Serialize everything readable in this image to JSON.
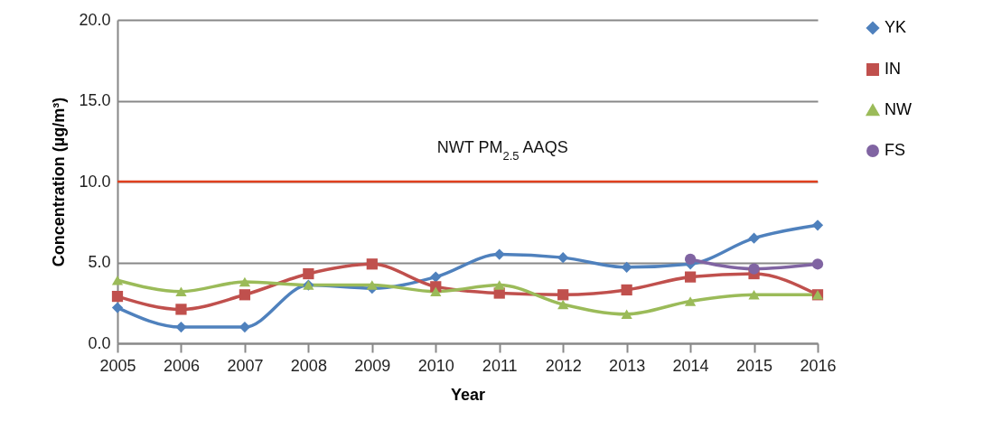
{
  "chart_data": {
    "type": "line",
    "xlabel": "Year",
    "ylabel": "Concentration (µg/m³)",
    "categories": [
      "2005",
      "2006",
      "2007",
      "2008",
      "2009",
      "2010",
      "2011",
      "2012",
      "2013",
      "2014",
      "2015",
      "2016"
    ],
    "series": [
      {
        "name": "YK",
        "color": "#4f81bd",
        "marker": "diamond",
        "values": [
          2.2,
          1.0,
          1.0,
          3.6,
          3.4,
          4.1,
          5.5,
          5.3,
          4.7,
          4.9,
          6.5,
          7.3
        ]
      },
      {
        "name": "IN",
        "color": "#c0504d",
        "marker": "square",
        "values": [
          2.9,
          2.1,
          3.0,
          4.3,
          4.9,
          3.5,
          3.1,
          3.0,
          3.3,
          4.1,
          4.3,
          3.0
        ]
      },
      {
        "name": "NW",
        "color": "#9bbb59",
        "marker": "triangle",
        "values": [
          3.9,
          3.2,
          3.8,
          3.6,
          3.6,
          3.2,
          3.6,
          2.4,
          1.8,
          2.6,
          3.0,
          3.0
        ]
      },
      {
        "name": "FS",
        "color": "#8064a2",
        "marker": "circle",
        "values": [
          null,
          null,
          null,
          null,
          null,
          null,
          null,
          null,
          null,
          5.2,
          4.6,
          4.9
        ]
      }
    ],
    "ylim": [
      0,
      20
    ],
    "yticks": [
      {
        "value": 0,
        "label": "0.0"
      },
      {
        "value": 5,
        "label": "5.0"
      },
      {
        "value": 10,
        "label": "10.0"
      },
      {
        "value": 15,
        "label": "15.0"
      },
      {
        "value": 20,
        "label": "20.0"
      }
    ],
    "ref_lines": [
      {
        "axis": "y",
        "value": 10,
        "label": "NWT PM$_{2.5}$ AAQS",
        "color": "#e0401e"
      }
    ],
    "grid": "y",
    "legend": "right",
    "line_style": "solid"
  }
}
